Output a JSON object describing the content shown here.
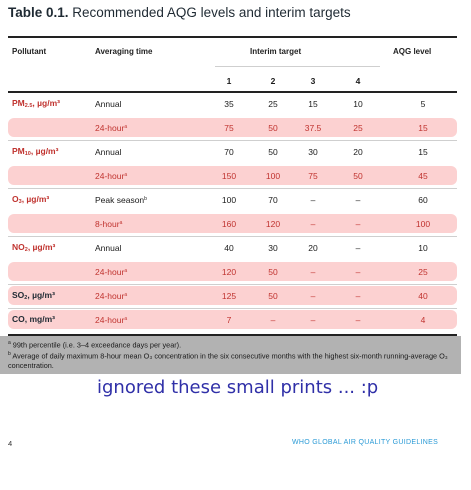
{
  "title": {
    "label": "Table 0.1.",
    "text": "Recommended AQG levels and interim targets"
  },
  "header": {
    "pollutant": "Pollutant",
    "averaging_time": "Averaging time",
    "interim_target": "Interim target",
    "aqg_level": "AQG level",
    "target_numbers": [
      "1",
      "2",
      "3",
      "4"
    ]
  },
  "rows": [
    {
      "pollutant": "PM",
      "sub": "2.5",
      "unit": ", µg/m³",
      "avg": "Annual",
      "sup": "",
      "targets": [
        "35",
        "25",
        "15",
        "10"
      ],
      "aqg": "5",
      "highlight": false
    },
    {
      "pollutant": "",
      "sub": "",
      "unit": "",
      "avg": "24-hour",
      "sup": "a",
      "targets": [
        "75",
        "50",
        "37.5",
        "25"
      ],
      "aqg": "15",
      "highlight": true
    },
    {
      "pollutant": "PM",
      "sub": "10",
      "unit": ", µg/m³",
      "avg": "Annual",
      "sup": "",
      "targets": [
        "70",
        "50",
        "30",
        "20"
      ],
      "aqg": "15",
      "highlight": false
    },
    {
      "pollutant": "",
      "sub": "",
      "unit": "",
      "avg": "24-hour",
      "sup": "a",
      "targets": [
        "150",
        "100",
        "75",
        "50"
      ],
      "aqg": "45",
      "highlight": true
    },
    {
      "pollutant": "O",
      "sub": "3",
      "unit": ", µg/m³",
      "avg": "Peak season",
      "sup": "b",
      "targets": [
        "100",
        "70",
        "–",
        "–"
      ],
      "aqg": "60",
      "highlight": false
    },
    {
      "pollutant": "",
      "sub": "",
      "unit": "",
      "avg": "8-hour",
      "sup": "a",
      "targets": [
        "160",
        "120",
        "–",
        "–"
      ],
      "aqg": "100",
      "highlight": true
    },
    {
      "pollutant": "NO",
      "sub": "2",
      "unit": ", µg/m³",
      "avg": "Annual",
      "sup": "",
      "targets": [
        "40",
        "30",
        "20",
        "–"
      ],
      "aqg": "10",
      "highlight": false
    },
    {
      "pollutant": "",
      "sub": "",
      "unit": "",
      "avg": "24-hour",
      "sup": "a",
      "targets": [
        "120",
        "50",
        "–",
        "–"
      ],
      "aqg": "25",
      "highlight": true
    },
    {
      "pollutant": "SO",
      "sub": "2",
      "unit": ", µg/m³",
      "avg": "24-hour",
      "sup": "a",
      "targets": [
        "125",
        "50",
        "–",
        "–"
      ],
      "aqg": "40",
      "highlight": true
    },
    {
      "pollutant": "CO",
      "sub": "",
      "unit": ", mg/m³",
      "avg": "24-hour",
      "sup": "a",
      "targets": [
        "7",
        "–",
        "–",
        "–"
      ],
      "aqg": "4",
      "highlight": true
    }
  ],
  "footnotes": [
    {
      "mark": "a",
      "text": " 99th percentile (i.e. 3–4 exceedance days per year)."
    },
    {
      "mark": "b",
      "text": " Average of daily maximum 8-hour mean O₃ concentration in the six consecutive months with the highest six-month running-average O₃ concentration."
    }
  ],
  "annotation": "ignored these small prints ... :p",
  "footer": {
    "page_number": "4",
    "running_title": "WHO GLOBAL AIR QUALITY GUIDELINES"
  },
  "colors": {
    "highlight": "#fbc9c9",
    "red_text": "#c0332f",
    "footer_blue": "#2a9ad6",
    "annotation_blue": "#3030a8",
    "footnote_bg": "#b2b2b2"
  }
}
